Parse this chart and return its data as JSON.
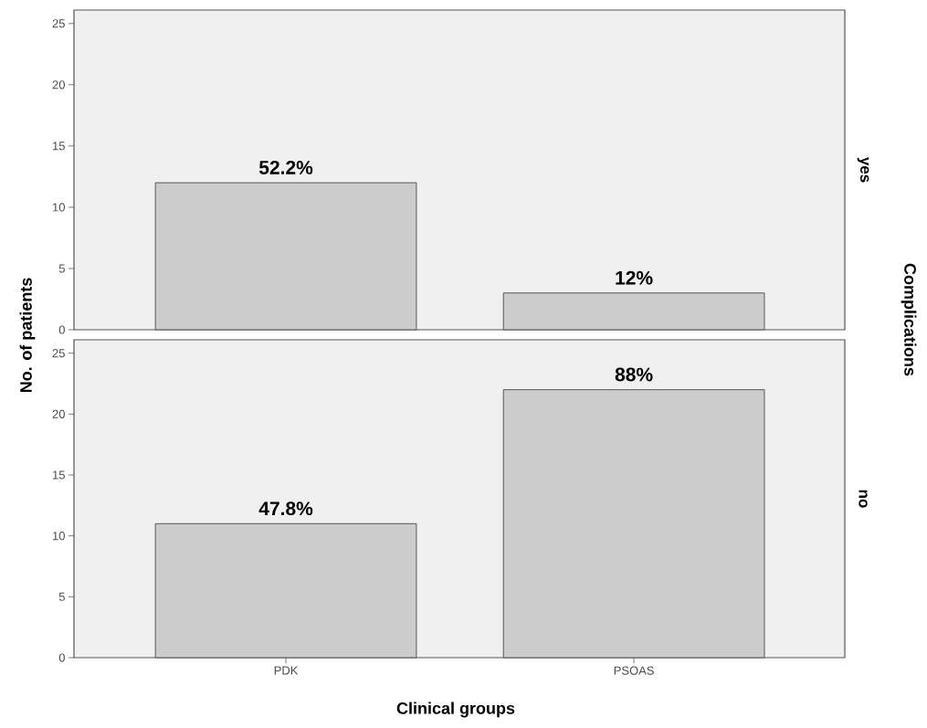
{
  "chart_data": [
    {
      "type": "bar",
      "categories": [
        null,
        null
      ],
      "values": [
        12,
        3
      ],
      "color": "#cccccc",
      "ylim": [
        0,
        26.1
      ],
      "yticks": [
        0,
        5,
        10,
        15,
        20,
        25
      ],
      "ylabel": "No. of patients",
      "y2label": "yes",
      "tick_labels": "y",
      "annotations": [
        "Complications",
        {
          "text": "52.2%",
          "y": 12
        },
        {
          "text": "12%",
          "y": 3
        }
      ]
    },
    {
      "type": "bar",
      "categories": [
        "PDK",
        "PSOAS"
      ],
      "values": [
        11,
        22
      ],
      "color": "#cccccc",
      "ylim": [
        0,
        26.1
      ],
      "yticks": [
        0,
        5,
        10,
        15,
        20,
        25
      ],
      "xlabel": "Clinical groups",
      "y2label": "no",
      "annotations": [
        {
          "text": "47.8%",
          "x": "PDK",
          "y": 11
        },
        {
          "text": "88%",
          "x": "PSOAS",
          "y": 22
        }
      ]
    }
  ]
}
